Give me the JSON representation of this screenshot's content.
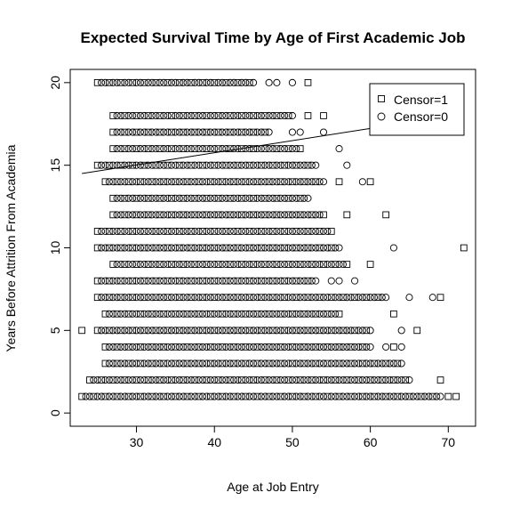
{
  "chart_data": {
    "type": "scatter",
    "title": "Expected Survival Time by Age of First Academic Job",
    "xlabel": "Age at Job Entry",
    "ylabel": "Years Before Attrition From Academia",
    "xlim": [
      21.5,
      73.5
    ],
    "ylim": [
      -0.8,
      20.8
    ],
    "xticks": [
      30,
      40,
      50,
      60,
      70
    ],
    "yticks": [
      0,
      5,
      10,
      15,
      20
    ],
    "xtick_labels": [
      "30",
      "40",
      "50",
      "60",
      "70"
    ],
    "ytick_labels": [
      "0",
      "5",
      "10",
      "15",
      "20"
    ],
    "grid": false,
    "legend": {
      "position": "top-right",
      "entries": [
        {
          "label": "Censor=1",
          "marker": "square"
        },
        {
          "label": "Censor=0",
          "marker": "circle"
        }
      ]
    },
    "fit_line": {
      "x": [
        23,
        61
      ],
      "y": [
        14.5,
        17.3
      ]
    },
    "rows": [
      {
        "y": 1,
        "x_min": 23,
        "x_max": 69,
        "extra_squares": [
          70,
          71
        ],
        "extra_circles": []
      },
      {
        "y": 2,
        "x_min": 24,
        "x_max": 65,
        "extra_squares": [
          69
        ],
        "extra_circles": []
      },
      {
        "y": 3,
        "x_min": 26,
        "x_max": 64,
        "extra_squares": [],
        "extra_circles": []
      },
      {
        "y": 4,
        "x_min": 26,
        "x_max": 60,
        "extra_squares": [
          63
        ],
        "extra_circles": [
          62,
          64
        ]
      },
      {
        "y": 5,
        "x_min": 25,
        "x_max": 60,
        "extra_squares": [
          23,
          66
        ],
        "extra_circles": [
          64
        ]
      },
      {
        "y": 6,
        "x_min": 26,
        "x_max": 56,
        "extra_squares": [
          63
        ],
        "extra_circles": []
      },
      {
        "y": 7,
        "x_min": 25,
        "x_max": 62,
        "extra_squares": [
          69
        ],
        "extra_circles": [
          65,
          68
        ]
      },
      {
        "y": 8,
        "x_min": 25,
        "x_max": 53,
        "extra_squares": [],
        "extra_circles": [
          55,
          56,
          58
        ]
      },
      {
        "y": 9,
        "x_min": 27,
        "x_max": 57,
        "extra_squares": [
          60
        ],
        "extra_circles": []
      },
      {
        "y": 10,
        "x_min": 25,
        "x_max": 56,
        "extra_squares": [
          72
        ],
        "extra_circles": [
          63
        ]
      },
      {
        "y": 11,
        "x_min": 25,
        "x_max": 55,
        "extra_squares": [],
        "extra_circles": []
      },
      {
        "y": 12,
        "x_min": 27,
        "x_max": 54,
        "extra_squares": [
          57,
          62
        ],
        "extra_circles": []
      },
      {
        "y": 13,
        "x_min": 27,
        "x_max": 52,
        "extra_squares": [],
        "extra_circles": []
      },
      {
        "y": 14,
        "x_min": 26,
        "x_max": 54,
        "extra_squares": [
          56,
          60
        ],
        "extra_circles": [
          59
        ]
      },
      {
        "y": 15,
        "x_min": 25,
        "x_max": 53,
        "extra_squares": [],
        "extra_circles": [
          57
        ]
      },
      {
        "y": 16,
        "x_min": 27,
        "x_max": 51,
        "extra_squares": [],
        "extra_circles": [
          56
        ]
      },
      {
        "y": 17,
        "x_min": 27,
        "x_max": 47,
        "extra_squares": [],
        "extra_circles": [
          50,
          51,
          54
        ]
      },
      {
        "y": 18,
        "x_min": 27,
        "x_max": 50,
        "extra_squares": [
          52,
          54
        ],
        "extra_circles": []
      },
      {
        "y": 20,
        "x_min": 25,
        "x_max": 45,
        "extra_squares": [
          52
        ],
        "extra_circles": [
          47,
          48,
          50
        ]
      }
    ]
  }
}
